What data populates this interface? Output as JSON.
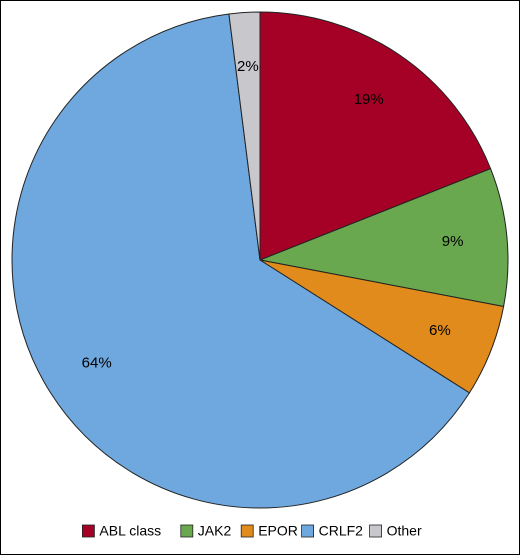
{
  "chart_data": {
    "type": "pie",
    "categories": [
      "ABL class",
      "JAK2",
      "EPOR",
      "CRLF2",
      "Other"
    ],
    "values": [
      19,
      9,
      6,
      64,
      2
    ],
    "value_labels": [
      "19%",
      "9%",
      "6%",
      "64%",
      "2%"
    ],
    "colors": [
      "#a50026",
      "#6aa84f",
      "#e08b1c",
      "#6fa8de",
      "#c8c8cc"
    ],
    "legend": "bottom"
  }
}
